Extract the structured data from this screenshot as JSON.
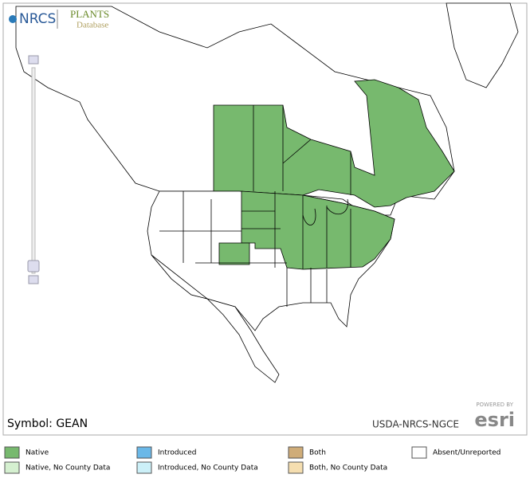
{
  "header": {
    "agency": "NRCS",
    "plants": "PLANTS",
    "database": "Database"
  },
  "map": {
    "symbol": "Symbol: GEAN",
    "credit": "USDA-NRCS-NGCE",
    "powered_by": "POWERED BY",
    "esri": "esri"
  },
  "legend": {
    "items": [
      {
        "label": "Native",
        "color": "#77b96e"
      },
      {
        "label": "Native, No County Data",
        "color": "#d5f0d0"
      },
      {
        "label": "Introduced",
        "color": "#6ab8e8"
      },
      {
        "label": "Introduced, No County Data",
        "color": "#ccf0f8"
      },
      {
        "label": "Both",
        "color": "#cfac78"
      },
      {
        "label": "Both, No County Data",
        "color": "#f5deb0"
      },
      {
        "label": "Absent/Unreported",
        "color": "#ffffff"
      }
    ]
  }
}
